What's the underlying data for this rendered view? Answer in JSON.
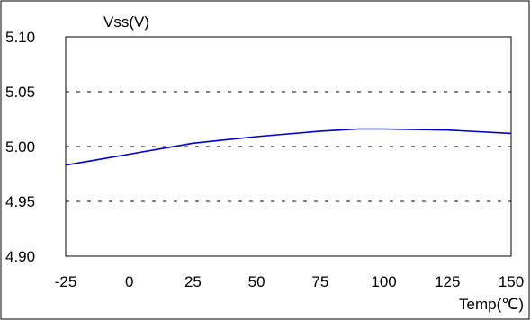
{
  "chart_data": {
    "type": "line",
    "title": "",
    "xlabel": "Temp(℃)",
    "ylabel": "Vss(V)",
    "x": [
      -25,
      -10,
      0,
      15,
      25,
      50,
      75,
      90,
      100,
      125,
      150
    ],
    "series": [
      {
        "values": [
          4.983,
          4.989,
          4.993,
          4.999,
          5.003,
          5.009,
          5.014,
          5.016,
          5.016,
          5.015,
          5.012
        ]
      }
    ],
    "xlim": [
      -25,
      150
    ],
    "ylim": [
      4.9,
      5.1
    ],
    "x_ticks": [
      "-25",
      "0",
      "25",
      "50",
      "75",
      "100",
      "125",
      "150"
    ],
    "y_ticks": [
      "5.10",
      "5.05",
      "5.00",
      "4.95",
      "4.90"
    ],
    "grid": "horizontal dashed",
    "line_color": "#0000cc"
  }
}
